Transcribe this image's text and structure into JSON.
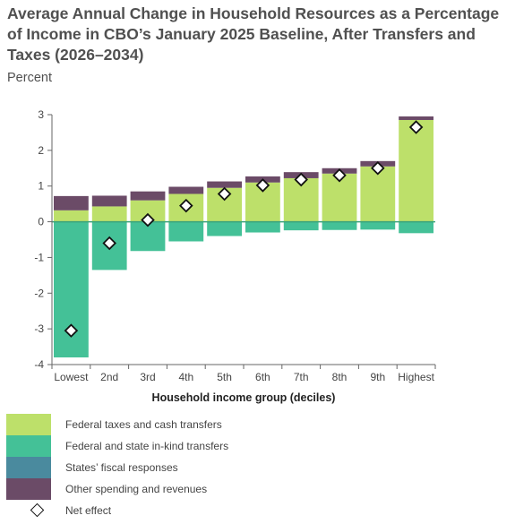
{
  "title": "Average Annual Change in Household Resources as a Percentage of Income in CBO’s January 2025 Baseline, After Transfers and Taxes (2026–2034)",
  "unit_label": "Percent",
  "colors": {
    "taxes_transfers": "#bde06a",
    "in_kind": "#44c197",
    "states_fiscal": "#4a8a9e",
    "other": "#6b4b67",
    "zero_line": "#3aa37a"
  },
  "legend": [
    {
      "label": "Federal taxes and cash transfers",
      "color": "#bde06a",
      "marker": "square"
    },
    {
      "label": "Federal and state in-kind transfers",
      "color": "#44c197",
      "marker": "square"
    },
    {
      "label": "States’ fiscal responses",
      "color": "#4a8a9e",
      "marker": "square"
    },
    {
      "label": "Other spending and revenues",
      "color": "#6b4b67",
      "marker": "square"
    },
    {
      "label": "Net effect",
      "color": "#ffffff",
      "marker": "diamond"
    }
  ],
  "chart_data": {
    "type": "bar",
    "stacked": true,
    "xlabel": "Household income group (deciles)",
    "ylabel": "",
    "ylim": [
      -4,
      3
    ],
    "yticks": [
      -4,
      -3,
      -2,
      -1,
      0,
      1,
      2,
      3
    ],
    "categories": [
      "Lowest",
      "2nd",
      "3rd",
      "4th",
      "5th",
      "6th",
      "7th",
      "8th",
      "9th",
      "Highest"
    ],
    "series": [
      {
        "name": "Federal taxes and cash transfers",
        "values": [
          0.32,
          0.43,
          0.6,
          0.78,
          0.95,
          1.1,
          1.22,
          1.35,
          1.55,
          2.85
        ]
      },
      {
        "name": "Federal and state in-kind transfers",
        "values": [
          -3.8,
          -1.35,
          -0.82,
          -0.55,
          -0.4,
          -0.3,
          -0.24,
          -0.23,
          -0.22,
          -0.32
        ]
      },
      {
        "name": "States’ fiscal responses",
        "values": [
          0,
          0,
          0,
          0,
          0,
          0,
          0,
          0,
          0,
          0
        ]
      },
      {
        "name": "Other spending and revenues",
        "values": [
          0.4,
          0.3,
          0.25,
          0.2,
          0.18,
          0.17,
          0.17,
          0.15,
          0.15,
          0.1
        ]
      }
    ],
    "net_effect": {
      "name": "Net effect",
      "values": [
        -3.05,
        -0.6,
        0.05,
        0.45,
        0.78,
        1.02,
        1.18,
        1.3,
        1.5,
        2.65
      ]
    },
    "grid": false,
    "legend_position": "bottom"
  }
}
